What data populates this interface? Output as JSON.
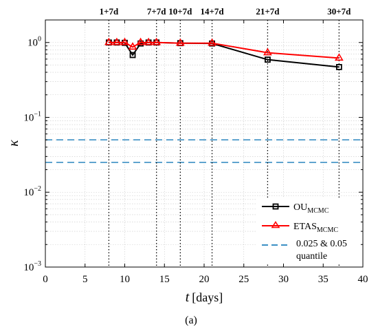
{
  "chart_data": {
    "type": "line",
    "title": "",
    "xlabel": "t",
    "xlabel_unit": "[days]",
    "ylabel": "κ",
    "xlim": [
      0,
      40
    ],
    "ylim": [
      0.001,
      2
    ],
    "yscale": "log",
    "grid": true,
    "x_ticks": [
      0,
      5,
      10,
      15,
      20,
      25,
      30,
      35,
      40
    ],
    "y_ticks": [
      {
        "value": 0.001,
        "base": "10",
        "exp": "−3"
      },
      {
        "value": 0.01,
        "base": "10",
        "exp": "−2"
      },
      {
        "value": 0.1,
        "base": "10",
        "exp": "−1"
      },
      {
        "value": 1,
        "base": "10",
        "exp": "0"
      }
    ],
    "vertical_markers": [
      {
        "x": 8,
        "label": "1+7d"
      },
      {
        "x": 14,
        "label": "7+7d"
      },
      {
        "x": 17,
        "label": "10+7d"
      },
      {
        "x": 21,
        "label": "14+7d"
      },
      {
        "x": 28,
        "label": "21+7d"
      },
      {
        "x": 37,
        "label": "30+7d"
      }
    ],
    "series": [
      {
        "name": "OU",
        "name_sub": "MCMC",
        "color": "#000000",
        "marker": "square",
        "x": [
          8,
          9,
          10,
          11,
          12,
          13,
          14,
          17,
          21,
          28,
          37
        ],
        "y": [
          1.0,
          1.0,
          0.99,
          0.68,
          0.97,
          1.0,
          1.0,
          0.98,
          0.97,
          0.59,
          0.47
        ]
      },
      {
        "name": "ETAS",
        "name_sub": "MCMC",
        "color": "#ff0000",
        "marker": "triangle",
        "x": [
          8,
          9,
          10,
          11,
          12,
          13,
          14,
          17,
          21,
          28,
          37
        ],
        "y": [
          1.0,
          1.0,
          1.0,
          0.87,
          1.0,
          1.0,
          1.0,
          0.98,
          0.98,
          0.73,
          0.62
        ]
      }
    ],
    "quantile_lines": {
      "values": [
        0.025,
        0.05
      ],
      "color": "#3a8fc4",
      "label_line1": "0.025 & 0.05",
      "label_line2": "quantile"
    },
    "legend_position": "bottom-right",
    "caption": "(a)"
  }
}
